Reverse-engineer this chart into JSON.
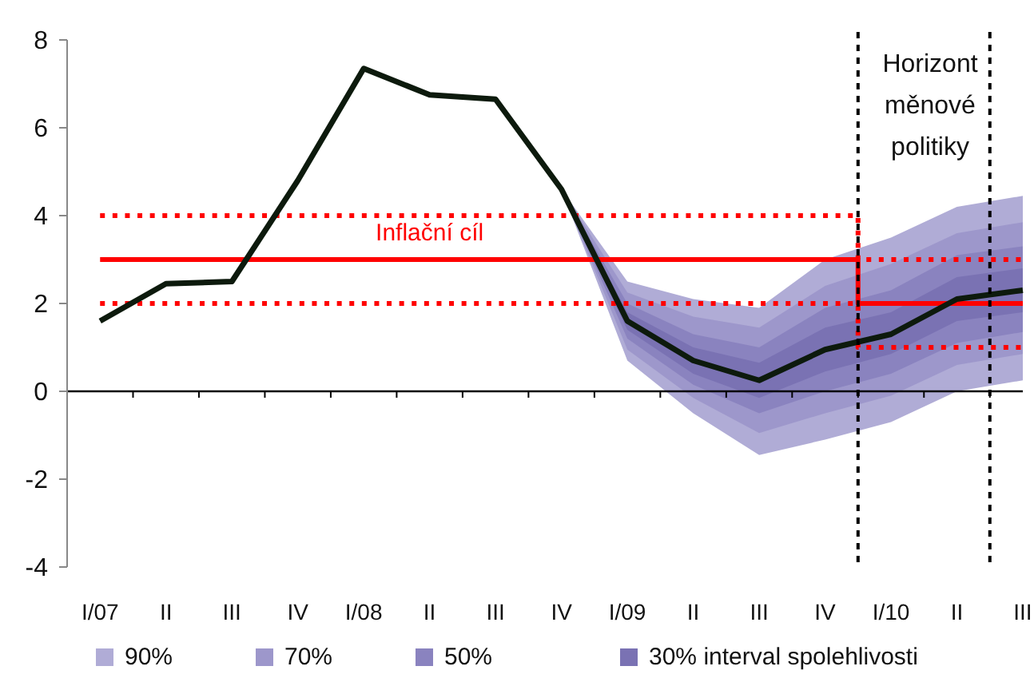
{
  "chart_data": {
    "type": "line",
    "categories": [
      "I/07",
      "II",
      "III",
      "IV",
      "I/08",
      "II",
      "III",
      "IV",
      "I/09",
      "II",
      "III",
      "IV",
      "I/10",
      "II",
      "III"
    ],
    "series": [
      {
        "name": "90%",
        "type": "line",
        "color": "#b0acd6",
        "values": [
          null,
          null,
          null,
          null,
          null,
          null,
          null,
          null,
          null,
          null,
          null,
          null,
          null,
          null,
          null
        ],
        "lower": [
          null,
          null,
          null,
          null,
          null,
          null,
          null,
          4.6,
          0.7,
          -0.5,
          -1.45,
          -1.1,
          -0.7,
          0.0,
          0.25
        ],
        "upper": [
          null,
          null,
          null,
          null,
          null,
          null,
          null,
          4.6,
          2.5,
          2.1,
          1.9,
          3.0,
          3.5,
          4.2,
          4.45
        ]
      },
      {
        "name": "70%",
        "type": "line",
        "color": "#9d97cb",
        "values": [
          null,
          null,
          null,
          null,
          null,
          null,
          null,
          null,
          null,
          null,
          null,
          null,
          null,
          null,
          null
        ],
        "lower": [
          null,
          null,
          null,
          null,
          null,
          null,
          null,
          4.6,
          0.95,
          -0.15,
          -0.95,
          -0.5,
          -0.1,
          0.6,
          0.85
        ],
        "upper": [
          null,
          null,
          null,
          null,
          null,
          null,
          null,
          4.6,
          2.25,
          1.7,
          1.45,
          2.4,
          2.9,
          3.6,
          3.85
        ]
      },
      {
        "name": "50%",
        "type": "line",
        "color": "#8a83bf",
        "values": [
          null,
          null,
          null,
          null,
          null,
          null,
          null,
          null,
          null,
          null,
          null,
          null,
          null,
          null,
          null
        ],
        "lower": [
          null,
          null,
          null,
          null,
          null,
          null,
          null,
          4.6,
          1.2,
          0.15,
          -0.5,
          0.0,
          0.4,
          1.1,
          1.35
        ],
        "upper": [
          null,
          null,
          null,
          null,
          null,
          null,
          null,
          4.6,
          2.0,
          1.3,
          1.0,
          1.9,
          2.3,
          3.1,
          3.3
        ]
      },
      {
        "name": "30% interval spolehlivosti",
        "type": "line",
        "color": "#7a72b3",
        "values": [
          null,
          null,
          null,
          null,
          null,
          null,
          null,
          null,
          null,
          null,
          null,
          null,
          null,
          null,
          null
        ],
        "lower": [
          null,
          null,
          null,
          null,
          null,
          null,
          null,
          4.6,
          1.4,
          0.4,
          -0.15,
          0.45,
          0.85,
          1.6,
          1.8
        ],
        "upper": [
          null,
          null,
          null,
          null,
          null,
          null,
          null,
          4.6,
          1.8,
          1.0,
          0.65,
          1.45,
          1.8,
          2.6,
          2.8
        ]
      },
      {
        "name": "Inflační cíl",
        "type": "step",
        "color": "#ff0000",
        "line_style": "solid",
        "values": [
          3,
          3,
          3,
          3,
          3,
          3,
          3,
          3,
          3,
          3,
          3,
          3,
          2,
          2,
          2
        ]
      },
      {
        "type": "step",
        "color": "#ff0000",
        "line_style": "dotted",
        "values": [
          4,
          4,
          4,
          4,
          4,
          4,
          4,
          4,
          4,
          4,
          4,
          4,
          3,
          3,
          3
        ]
      },
      {
        "type": "step",
        "color": "#ff0000",
        "line_style": "dotted",
        "values": [
          2,
          2,
          2,
          2,
          2,
          2,
          2,
          2,
          2,
          2,
          2,
          2,
          1,
          1,
          1
        ]
      },
      {
        "color": "#0d1a0d",
        "values": [
          1.6,
          2.45,
          2.5,
          4.8,
          7.35,
          6.75,
          6.65,
          4.6,
          1.6,
          0.7,
          0.25,
          0.95,
          1.3,
          2.1,
          2.3
        ]
      }
    ],
    "ylim": [
      -4,
      8
    ],
    "yticks": [
      -4,
      -2,
      0,
      2,
      4,
      6,
      8
    ],
    "grid": false,
    "legend": "bottom",
    "marker": "none",
    "annotations": [
      "Horizont měnové politiky"
    ]
  }
}
